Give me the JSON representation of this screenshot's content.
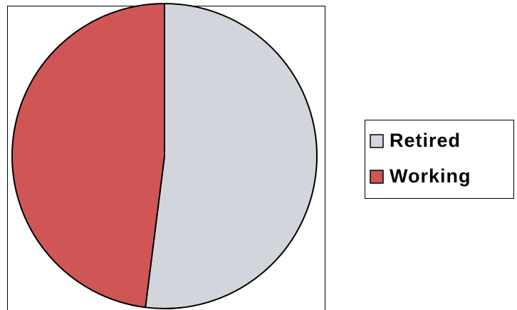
{
  "chart_data": {
    "type": "pie",
    "categories": [
      "Retired",
      "Working"
    ],
    "values": [
      52,
      48
    ],
    "colors": [
      "#d3d5dc",
      "#d05656"
    ],
    "legend": "right"
  }
}
